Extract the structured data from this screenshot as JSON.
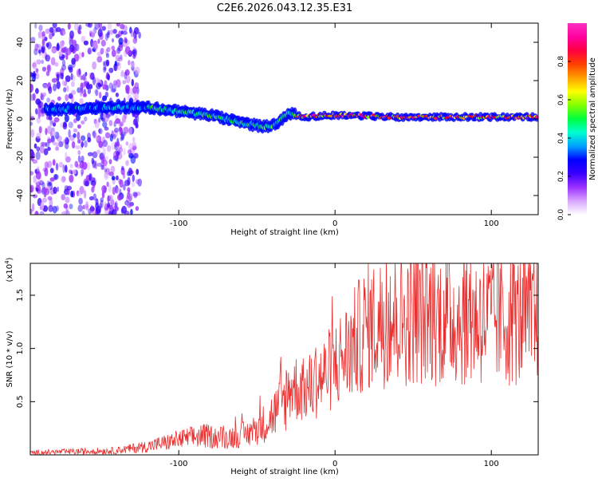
{
  "title": "C2E6.2026.043.12.35.E31",
  "chart_data": [
    {
      "type": "heatmap",
      "title": "C2E6.2026.043.12.35.E31",
      "xlabel": "Height of straight line (km)",
      "ylabel": "Frequency (Hz)",
      "xlim": [
        -195,
        130
      ],
      "ylim": [
        -50,
        50
      ],
      "xticks": [
        -100,
        0,
        100
      ],
      "yticks": [
        -40,
        -20,
        0,
        20,
        40
      ],
      "description_track": {
        "x": [
          -175,
          -150,
          -120,
          -100,
          -80,
          -60,
          -45,
          -38,
          -30,
          -20,
          0,
          40,
          80,
          130
        ],
        "center_freq": [
          5,
          6,
          6,
          4,
          2,
          -2,
          -4,
          -3,
          3,
          1,
          2,
          1,
          1,
          1
        ]
      },
      "colorbar": {
        "label": "Normalized spectral amplitude",
        "ticks": [
          0.0,
          0.2,
          0.4,
          0.6,
          0.8
        ],
        "range": [
          0,
          1
        ],
        "colors": [
          "#ffffff",
          "#d9a6ff",
          "#9b30ff",
          "#3a00ff",
          "#0000ff",
          "#00a0ff",
          "#00ffd0",
          "#00ff40",
          "#80ff00",
          "#ffff00",
          "#ffa000",
          "#ff4000",
          "#ff0040",
          "#ff00a0",
          "#ff30c0"
        ]
      }
    },
    {
      "type": "line",
      "xlabel": "Height of straight line (km)",
      "ylabel": "SNR (10 * v/v)",
      "yscale_label": "(x10",
      "yscale_exp": "4",
      "xlim": [
        -195,
        130
      ],
      "ylim": [
        0,
        1.8
      ],
      "xticks": [
        -100,
        0,
        100
      ],
      "yticks": [
        0.5,
        1.0,
        1.5
      ],
      "ytick_labels": [
        "0.5",
        "1.0",
        "1.5"
      ],
      "series": [
        {
          "name": "SNR",
          "color": "#e83030",
          "x": [
            -195,
            -170,
            -140,
            -120,
            -100,
            -85,
            -70,
            -55,
            -45,
            -35,
            -28,
            -20,
            -10,
            0,
            10,
            20,
            30,
            50,
            70,
            90,
            110,
            130
          ],
          "values": [
            0.02,
            0.03,
            0.04,
            0.08,
            0.14,
            0.18,
            0.16,
            0.2,
            0.3,
            0.45,
            0.65,
            0.6,
            0.7,
            0.85,
            1.0,
            1.2,
            1.25,
            1.3,
            1.3,
            1.28,
            1.28,
            1.25
          ]
        }
      ]
    }
  ]
}
